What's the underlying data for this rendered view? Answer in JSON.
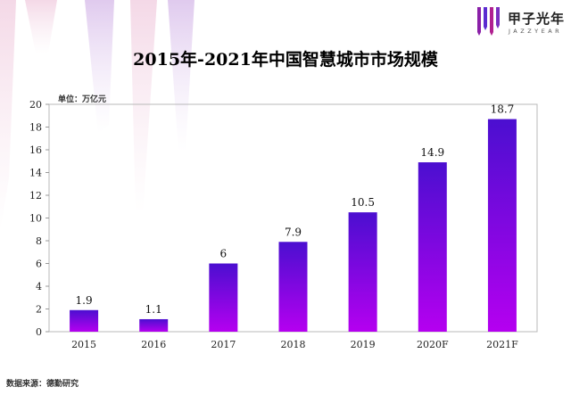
{
  "brand": {
    "name_cn": "甲子光年",
    "name_en": "JAZZYEAR"
  },
  "colors": {
    "bar_top": "#4b0fd0",
    "bar_bottom": "#b500f0",
    "deco": "#e8b8d8"
  },
  "source_text": "数据来源：德勤研究",
  "chart_data": {
    "type": "bar",
    "title": "2015年-2021年中国智慧城市市场规模",
    "unit_label": "单位：万亿元",
    "categories": [
      "2015",
      "2016",
      "2017",
      "2018",
      "2019",
      "2020F",
      "2021F"
    ],
    "values": [
      1.9,
      1.1,
      6,
      7.9,
      10.5,
      14.9,
      18.7
    ],
    "value_labels": [
      "1.9",
      "1.1",
      "6",
      "7.9",
      "10.5",
      "14.9",
      "18.7"
    ],
    "ylim": [
      0,
      20
    ],
    "yticks": [
      0,
      2,
      4,
      6,
      8,
      10,
      12,
      14,
      16,
      18,
      20
    ],
    "xlabel": "",
    "ylabel": "",
    "grid": false
  }
}
